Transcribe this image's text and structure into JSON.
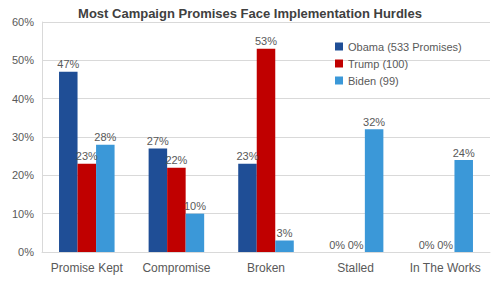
{
  "chart_data": {
    "type": "bar",
    "title": "Most Campaign Promises Face Implementation Hurdles",
    "categories": [
      "Promise Kept",
      "Compromise",
      "Broken",
      "Stalled",
      "In The Works"
    ],
    "series": [
      {
        "name": "Obama (533 Promises)",
        "color": "#1f4e96",
        "values": [
          47,
          27,
          23,
          0,
          0
        ],
        "value_labels": [
          "47%",
          "27%",
          "23%",
          "0%",
          "0%"
        ]
      },
      {
        "name": "Trump (100)",
        "color": "#c00000",
        "values": [
          23,
          22,
          53,
          0,
          0
        ],
        "value_labels": [
          "23%",
          "22%",
          "53%",
          "0%",
          "0%"
        ]
      },
      {
        "name": "Biden (99)",
        "color": "#3b98d8",
        "values": [
          28,
          10,
          3,
          32,
          24
        ],
        "value_labels": [
          "28%",
          "10%",
          "3%",
          "32%",
          "24%"
        ]
      }
    ],
    "ylim": [
      0,
      60
    ],
    "yticks": [
      {
        "value": 0,
        "label": "0%"
      },
      {
        "value": 10,
        "label": "10%"
      },
      {
        "value": 20,
        "label": "20%"
      },
      {
        "value": 30,
        "label": "30%"
      },
      {
        "value": 40,
        "label": "40%"
      },
      {
        "value": 50,
        "label": "50%"
      },
      {
        "value": 60,
        "label": "60%"
      }
    ],
    "grid": true,
    "legend": "upper right",
    "data_labels": true
  }
}
